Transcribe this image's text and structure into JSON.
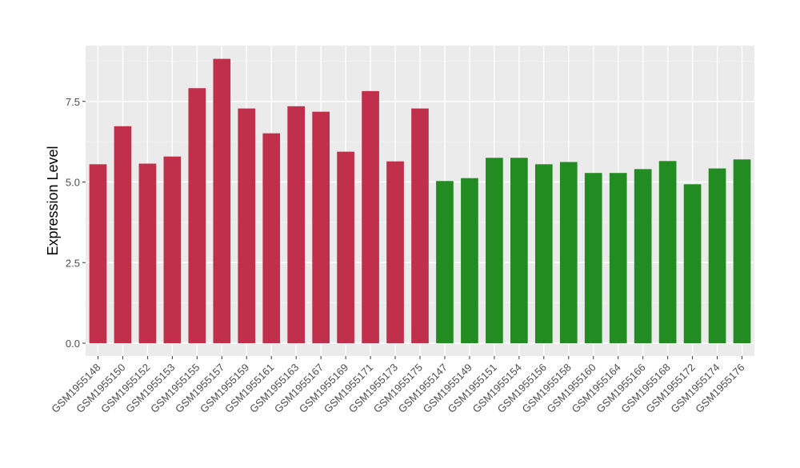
{
  "chart_data": {
    "type": "bar",
    "title": "",
    "xlabel": "",
    "ylabel": "Expression Level",
    "ylim": [
      0,
      9.0
    ],
    "yticks": [
      0.0,
      2.5,
      5.0,
      7.5
    ],
    "ytick_labels": [
      "0.0",
      "2.5",
      "5.0",
      "7.5"
    ],
    "grid": true,
    "legend": "none",
    "colors": {
      "group1": "#C0304A",
      "group2": "#228B22",
      "panel": "#EBEBEB",
      "grid": "#FFFFFF"
    },
    "categories": [
      "GSM1955148",
      "GSM1955150",
      "GSM1955152",
      "GSM1955153",
      "GSM1955155",
      "GSM1955157",
      "GSM1955159",
      "GSM1955161",
      "GSM1955163",
      "GSM1955167",
      "GSM1955169",
      "GSM1955171",
      "GSM1955173",
      "GSM1955175",
      "GSM1955147",
      "GSM1955149",
      "GSM1955151",
      "GSM1955154",
      "GSM1955156",
      "GSM1955158",
      "GSM1955160",
      "GSM1955164",
      "GSM1955166",
      "GSM1955168",
      "GSM1955172",
      "GSM1955174",
      "GSM1955176"
    ],
    "values": [
      5.55,
      6.73,
      5.57,
      5.79,
      7.91,
      8.82,
      7.28,
      6.51,
      7.35,
      7.18,
      5.94,
      7.82,
      5.64,
      7.28,
      5.03,
      5.12,
      5.75,
      5.75,
      5.55,
      5.62,
      5.28,
      5.28,
      5.4,
      5.65,
      4.93,
      5.42,
      5.7
    ],
    "groups": [
      1,
      1,
      1,
      1,
      1,
      1,
      1,
      1,
      1,
      1,
      1,
      1,
      1,
      1,
      2,
      2,
      2,
      2,
      2,
      2,
      2,
      2,
      2,
      2,
      2,
      2,
      2
    ]
  }
}
